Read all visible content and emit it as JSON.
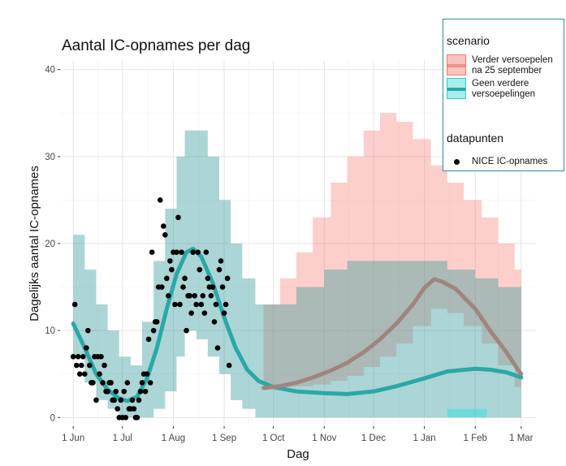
{
  "chart_data": {
    "type": "line",
    "title": "Aantal IC-opnames per dag",
    "xlabel": "Dag",
    "ylabel": "Dagelijks aantal IC-opnames",
    "x_ticks": [
      "1 Jun",
      "1 Jul",
      "1 Aug",
      "1 Sep",
      "1 Oct",
      "1 Nov",
      "1 Dec",
      "1 Jan",
      "1 Feb",
      "1 Mar"
    ],
    "x_tick_dates": [
      "2020-06-01",
      "2020-07-01",
      "2020-08-01",
      "2020-09-01",
      "2020-10-01",
      "2020-11-01",
      "2020-12-01",
      "2021-01-01",
      "2021-02-01",
      "2021-03-01"
    ],
    "y_ticks": [
      0,
      10,
      20,
      30,
      40
    ],
    "ylim": [
      -1,
      41
    ],
    "xlim": [
      "2020-05-24",
      "2021-03-10"
    ],
    "grid": true,
    "legend_position": "top-right",
    "colors": {
      "red_line": "#a0857f",
      "red_band": "#f8766d",
      "teal_line": "#2aa8a8",
      "teal_band": "#3a9b9b",
      "cyan_band": "#00e5e5",
      "points": "#000000",
      "panel": "#ffffff",
      "grid": "#e5e5e5"
    },
    "legend": {
      "scenario_title": "scenario",
      "scenario_items": [
        {
          "label": "Verder versoepelen\n na 25 september",
          "key": "red"
        },
        {
          "label": "Geen verdere\n versoepelingen",
          "key": "teal"
        }
      ],
      "points_title": "datapunten",
      "points_label": "NICE IC-opnames"
    },
    "series": [
      {
        "name": "Verder versoepelen na 25 september",
        "color": "#a0857f",
        "line": [
          [
            "2020-09-25",
            3.4
          ],
          [
            "2020-10-05",
            3.6
          ],
          [
            "2020-10-15",
            4.0
          ],
          [
            "2020-10-25",
            4.6
          ],
          [
            "2020-11-05",
            5.4
          ],
          [
            "2020-11-15",
            6.3
          ],
          [
            "2020-11-25",
            7.5
          ],
          [
            "2020-12-05",
            9.0
          ],
          [
            "2020-12-15",
            10.8
          ],
          [
            "2020-12-25",
            13.0
          ],
          [
            "2021-01-01",
            14.9
          ],
          [
            "2021-01-07",
            15.9
          ],
          [
            "2021-01-12",
            15.6
          ],
          [
            "2021-01-20",
            14.8
          ],
          [
            "2021-02-01",
            12.5
          ],
          [
            "2021-02-10",
            10.0
          ],
          [
            "2021-02-20",
            7.5
          ],
          [
            "2021-02-27",
            5.5
          ],
          [
            "2021-03-01",
            5.0
          ]
        ],
        "band": [
          [
            "2020-09-25",
            3.5,
            13
          ],
          [
            "2020-10-05",
            3.5,
            16
          ],
          [
            "2020-10-15",
            3.6,
            19
          ],
          [
            "2020-10-25",
            3.8,
            23
          ],
          [
            "2020-11-05",
            4.2,
            27
          ],
          [
            "2020-11-15",
            4.8,
            30
          ],
          [
            "2020-11-25",
            5.8,
            33
          ],
          [
            "2020-12-05",
            7.0,
            35
          ],
          [
            "2020-12-15",
            8.5,
            34
          ],
          [
            "2020-12-25",
            10.5,
            32
          ],
          [
            "2021-01-05",
            12.5,
            29
          ],
          [
            "2021-01-15",
            12.0,
            27
          ],
          [
            "2021-01-25",
            10.5,
            25
          ],
          [
            "2021-02-05",
            8.5,
            23
          ],
          [
            "2021-02-15",
            6.0,
            20
          ],
          [
            "2021-02-25",
            3.5,
            17
          ],
          [
            "2021-03-01",
            3.0,
            16
          ]
        ]
      },
      {
        "name": "Geen verdere versoepelingen",
        "color": "#2aa8a8",
        "line": [
          [
            "2020-06-01",
            10.8
          ],
          [
            "2020-06-08",
            8.0
          ],
          [
            "2020-06-15",
            5.0
          ],
          [
            "2020-06-22",
            3.2
          ],
          [
            "2020-06-29",
            2.2
          ],
          [
            "2020-07-04",
            1.9
          ],
          [
            "2020-07-10",
            2.4
          ],
          [
            "2020-07-16",
            4.5
          ],
          [
            "2020-07-22",
            8.0
          ],
          [
            "2020-07-28",
            12.5
          ],
          [
            "2020-08-03",
            16.5
          ],
          [
            "2020-08-09",
            19.0
          ],
          [
            "2020-08-13",
            19.4
          ],
          [
            "2020-08-18",
            18.5
          ],
          [
            "2020-08-25",
            15.5
          ],
          [
            "2020-09-01",
            11.5
          ],
          [
            "2020-09-08",
            8.0
          ],
          [
            "2020-09-15",
            5.5
          ],
          [
            "2020-09-22",
            4.2
          ],
          [
            "2020-10-01",
            3.5
          ],
          [
            "2020-10-15",
            3.0
          ],
          [
            "2020-11-01",
            2.8
          ],
          [
            "2020-11-15",
            2.7
          ],
          [
            "2020-12-01",
            3.0
          ],
          [
            "2020-12-15",
            3.6
          ],
          [
            "2021-01-01",
            4.5
          ],
          [
            "2021-01-15",
            5.3
          ],
          [
            "2021-02-01",
            5.6
          ],
          [
            "2021-02-10",
            5.5
          ],
          [
            "2021-02-20",
            5.2
          ],
          [
            "2021-03-01",
            4.6
          ]
        ],
        "band": [
          [
            "2020-06-01",
            7.0,
            21
          ],
          [
            "2020-06-08",
            4.0,
            17
          ],
          [
            "2020-06-15",
            2.0,
            13
          ],
          [
            "2020-06-22",
            1.0,
            10
          ],
          [
            "2020-06-29",
            0.0,
            7
          ],
          [
            "2020-07-06",
            0.0,
            6
          ],
          [
            "2020-07-13",
            0.0,
            11
          ],
          [
            "2020-07-20",
            1.0,
            18
          ],
          [
            "2020-07-27",
            3.0,
            24
          ],
          [
            "2020-08-03",
            7.0,
            30
          ],
          [
            "2020-08-08",
            10.0,
            33
          ],
          [
            "2020-08-15",
            9.0,
            33
          ],
          [
            "2020-08-22",
            7.0,
            30
          ],
          [
            "2020-08-29",
            5.0,
            25
          ],
          [
            "2020-09-05",
            2.0,
            20
          ],
          [
            "2020-09-12",
            1.0,
            16
          ],
          [
            "2020-09-20",
            0.0,
            13
          ],
          [
            "2020-10-01",
            0.0,
            13
          ],
          [
            "2020-10-15",
            0.0,
            15
          ],
          [
            "2020-11-01",
            0.0,
            17
          ],
          [
            "2020-11-15",
            0.0,
            18
          ],
          [
            "2021-01-01",
            0.0,
            18
          ],
          [
            "2021-01-15",
            0.0,
            17
          ],
          [
            "2021-02-01",
            0.0,
            16
          ],
          [
            "2021-02-15",
            0.0,
            15
          ],
          [
            "2021-03-01",
            0.0,
            14
          ]
        ]
      }
    ],
    "cyan_band": [
      [
        "2021-01-15",
        0,
        1
      ],
      [
        "2021-02-08",
        0,
        1
      ]
    ],
    "points": [
      [
        "2020-06-01",
        7
      ],
      [
        "2020-06-02",
        13
      ],
      [
        "2020-06-03",
        6
      ],
      [
        "2020-06-04",
        7
      ],
      [
        "2020-06-05",
        5
      ],
      [
        "2020-06-06",
        6
      ],
      [
        "2020-06-07",
        7
      ],
      [
        "2020-06-08",
        5
      ],
      [
        "2020-06-09",
        8
      ],
      [
        "2020-06-10",
        10
      ],
      [
        "2020-06-11",
        6
      ],
      [
        "2020-06-12",
        4
      ],
      [
        "2020-06-13",
        4
      ],
      [
        "2020-06-14",
        7
      ],
      [
        "2020-06-15",
        2
      ],
      [
        "2020-06-16",
        7
      ],
      [
        "2020-06-17",
        5
      ],
      [
        "2020-06-18",
        7
      ],
      [
        "2020-06-19",
        4
      ],
      [
        "2020-06-20",
        6
      ],
      [
        "2020-06-21",
        3
      ],
      [
        "2020-06-22",
        3
      ],
      [
        "2020-06-23",
        4
      ],
      [
        "2020-06-24",
        4
      ],
      [
        "2020-06-25",
        2
      ],
      [
        "2020-06-26",
        2
      ],
      [
        "2020-06-27",
        3
      ],
      [
        "2020-06-28",
        1
      ],
      [
        "2020-06-29",
        0
      ],
      [
        "2020-06-30",
        2
      ],
      [
        "2020-07-01",
        0
      ],
      [
        "2020-07-02",
        3
      ],
      [
        "2020-07-03",
        0
      ],
      [
        "2020-07-04",
        4
      ],
      [
        "2020-07-05",
        1
      ],
      [
        "2020-07-06",
        1
      ],
      [
        "2020-07-07",
        2
      ],
      [
        "2020-07-08",
        1
      ],
      [
        "2020-07-09",
        0
      ],
      [
        "2020-07-10",
        0
      ],
      [
        "2020-07-11",
        2
      ],
      [
        "2020-07-12",
        3
      ],
      [
        "2020-07-13",
        4
      ],
      [
        "2020-07-14",
        5
      ],
      [
        "2020-07-15",
        3
      ],
      [
        "2020-07-16",
        5
      ],
      [
        "2020-07-17",
        9
      ],
      [
        "2020-07-18",
        4
      ],
      [
        "2020-07-19",
        19
      ],
      [
        "2020-07-20",
        10
      ],
      [
        "2020-07-21",
        11
      ],
      [
        "2020-07-22",
        11
      ],
      [
        "2020-07-23",
        15
      ],
      [
        "2020-07-24",
        25
      ],
      [
        "2020-07-25",
        15
      ],
      [
        "2020-07-26",
        22
      ],
      [
        "2020-07-27",
        21
      ],
      [
        "2020-07-28",
        16
      ],
      [
        "2020-07-29",
        14
      ],
      [
        "2020-07-30",
        18
      ],
      [
        "2020-07-31",
        17
      ],
      [
        "2020-08-01",
        19
      ],
      [
        "2020-08-02",
        13
      ],
      [
        "2020-08-03",
        19
      ],
      [
        "2020-08-04",
        23
      ],
      [
        "2020-08-05",
        13
      ],
      [
        "2020-08-06",
        19
      ],
      [
        "2020-08-07",
        15
      ],
      [
        "2020-08-08",
        16
      ],
      [
        "2020-08-09",
        10
      ],
      [
        "2020-08-10",
        14
      ],
      [
        "2020-08-11",
        14
      ],
      [
        "2020-08-12",
        12
      ],
      [
        "2020-08-13",
        19
      ],
      [
        "2020-08-14",
        14
      ],
      [
        "2020-08-15",
        13
      ],
      [
        "2020-08-16",
        19
      ],
      [
        "2020-08-17",
        17
      ],
      [
        "2020-08-18",
        13
      ],
      [
        "2020-08-19",
        14
      ],
      [
        "2020-08-20",
        12
      ],
      [
        "2020-08-21",
        19
      ],
      [
        "2020-08-22",
        16
      ],
      [
        "2020-08-23",
        15
      ],
      [
        "2020-08-24",
        14
      ],
      [
        "2020-08-25",
        15
      ],
      [
        "2020-08-26",
        11
      ],
      [
        "2020-08-27",
        13
      ],
      [
        "2020-08-28",
        8
      ],
      [
        "2020-08-29",
        17
      ],
      [
        "2020-08-30",
        18
      ],
      [
        "2020-08-31",
        15
      ],
      [
        "2020-09-01",
        12
      ],
      [
        "2020-09-02",
        13
      ],
      [
        "2020-09-03",
        16
      ],
      [
        "2020-09-04",
        6
      ]
    ]
  }
}
